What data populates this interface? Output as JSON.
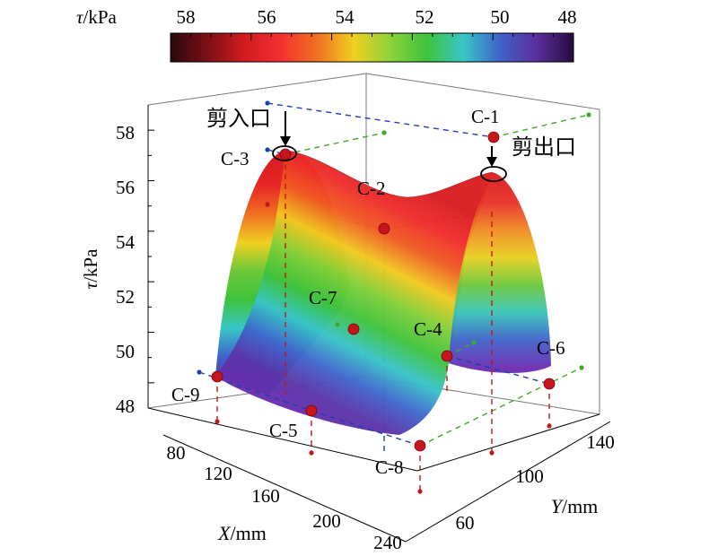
{
  "chart_data": {
    "type": "surface3d",
    "colorbar": {
      "label_var": "τ",
      "label_unit": "/kPa",
      "ticks": [
        "58",
        "56",
        "54",
        "52",
        "50",
        "48"
      ],
      "range": [
        58,
        48
      ],
      "stops": [
        "#2a0a0c",
        "#7a1016",
        "#d11b20",
        "#f23030",
        "#f07020",
        "#f0d020",
        "#8cd23a",
        "#3ec23c",
        "#38c7c7",
        "#3f62c9",
        "#5a2f9c",
        "#2a0a40"
      ]
    },
    "axes": {
      "z_label_var": "τ",
      "z_label_unit": "/kPa",
      "z_ticks": [
        "48",
        "50",
        "52",
        "54",
        "56",
        "58"
      ],
      "x_label_var": "X",
      "x_label_unit": "/mm",
      "x_ticks": [
        "80",
        "120",
        "160",
        "200",
        "240"
      ],
      "y_label_var": "Y",
      "y_label_unit": "/mm",
      "y_ticks": [
        "60",
        "100",
        "140"
      ],
      "z_range": [
        47,
        59
      ]
    },
    "points": [
      {
        "name": "C-1",
        "x": 80,
        "y": 140,
        "tau": 57.6
      },
      {
        "name": "C-2",
        "x": 160,
        "y": 140,
        "tau": 54.5
      },
      {
        "name": "C-3",
        "x": 80,
        "y": 60,
        "tau": 57.0
      },
      {
        "name": "C-4",
        "x": 160,
        "y": 100,
        "tau": 49.5
      },
      {
        "name": "C-5",
        "x": 200,
        "y": 60,
        "tau": 48.3
      },
      {
        "name": "C-6",
        "x": 200,
        "y": 140,
        "tau": 48.7
      },
      {
        "name": "C-7",
        "x": 120,
        "y": 100,
        "tau": 50.4
      },
      {
        "name": "C-8",
        "x": 240,
        "y": 80,
        "tau": 47.5
      },
      {
        "name": "C-9",
        "x": 120,
        "y": 60,
        "tau": 49.0
      }
    ],
    "annotations": [
      {
        "text": "剪入口"
      },
      {
        "text": "剪出口"
      }
    ]
  }
}
